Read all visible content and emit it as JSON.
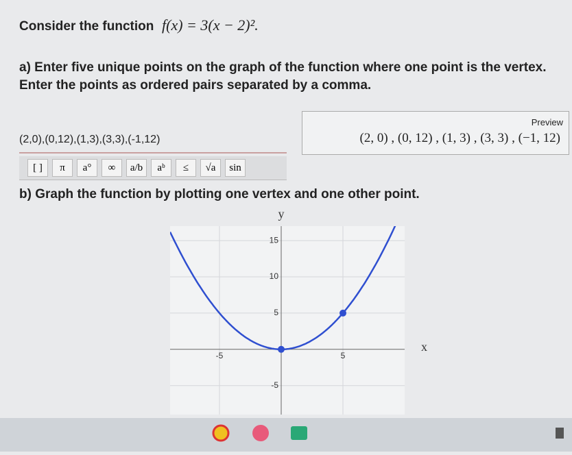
{
  "question": {
    "lead": "Consider the function",
    "function": "f(x) = 3(x − 2)²."
  },
  "part_a": {
    "prompt_1": "a) Enter five unique points on the graph of the function where one point is the vertex.",
    "prompt_2": "Enter the points as ordered pairs separated by a comma.",
    "input": "(2,0),(0,12),(1,3),(3,3),(-1,12)",
    "preview_label": "Preview",
    "preview": "(2, 0) , (0, 12) , (1, 3) , (3, 3) , (−1, 12)"
  },
  "toolbar": [
    "[ ]",
    "π",
    "a°",
    "∞",
    "a/b",
    "aᵇ",
    "≤",
    "√a",
    "sin"
  ],
  "part_b": {
    "prompt": "b) Graph the function by plotting one vertex and one other point."
  },
  "graph": {
    "x_label": "x",
    "y_label": "y",
    "xlim": [
      -9,
      10
    ],
    "ylim": [
      -9,
      17
    ],
    "xticks": [
      -5,
      5
    ],
    "yticks": [
      -5,
      5,
      10,
      15
    ],
    "grid": true,
    "color": "#2f4fd0",
    "points": [
      {
        "x": 0,
        "y": 0
      },
      {
        "x": 5,
        "y": 5
      }
    ]
  }
}
